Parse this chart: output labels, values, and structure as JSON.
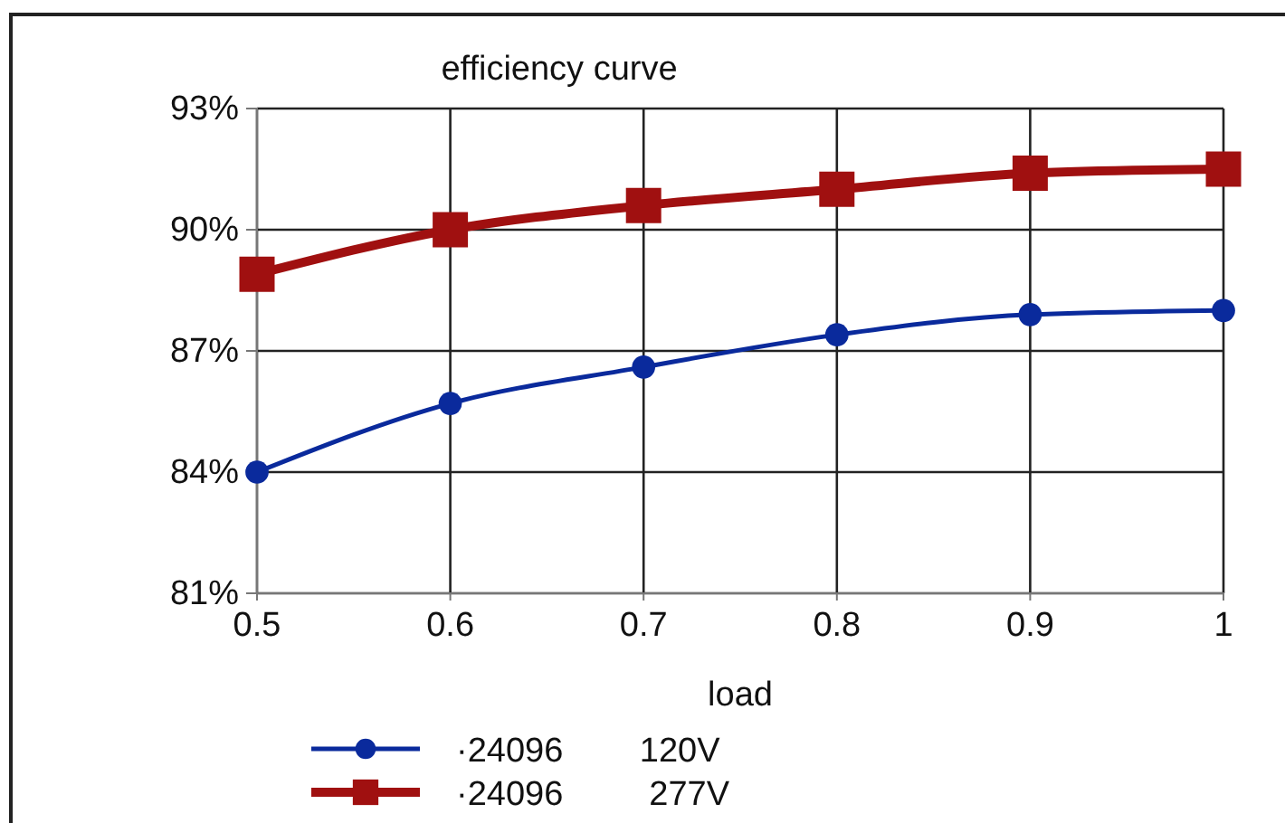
{
  "chart_data": {
    "type": "line",
    "title": "efficiency curve",
    "xlabel": "load",
    "x": [
      0.5,
      0.6,
      0.7,
      0.8,
      0.9,
      1
    ],
    "xlim": [
      0.5,
      1
    ],
    "xticks": [
      0.5,
      0.6,
      0.7,
      0.8,
      0.9,
      1
    ],
    "ylim": [
      81,
      93
    ],
    "yticks": [
      {
        "value": 81,
        "label": "81%"
      },
      {
        "value": 84,
        "label": "84%"
      },
      {
        "value": 87,
        "label": "87%"
      },
      {
        "value": 90,
        "label": "90%"
      },
      {
        "value": 93,
        "label": "93%"
      }
    ],
    "grid": true,
    "legend": "bottom",
    "line_style": "solid",
    "series": [
      {
        "name": "·24096        120V",
        "color": "#0a2a9c",
        "marker": "circle",
        "values": [
          84.0,
          85.7,
          86.6,
          87.4,
          87.9,
          88.0
        ]
      },
      {
        "name": "·24096         277V",
        "color": "#a01010",
        "marker": "square",
        "values": [
          88.9,
          90.0,
          90.6,
          91.0,
          91.4,
          91.5
        ]
      }
    ]
  }
}
